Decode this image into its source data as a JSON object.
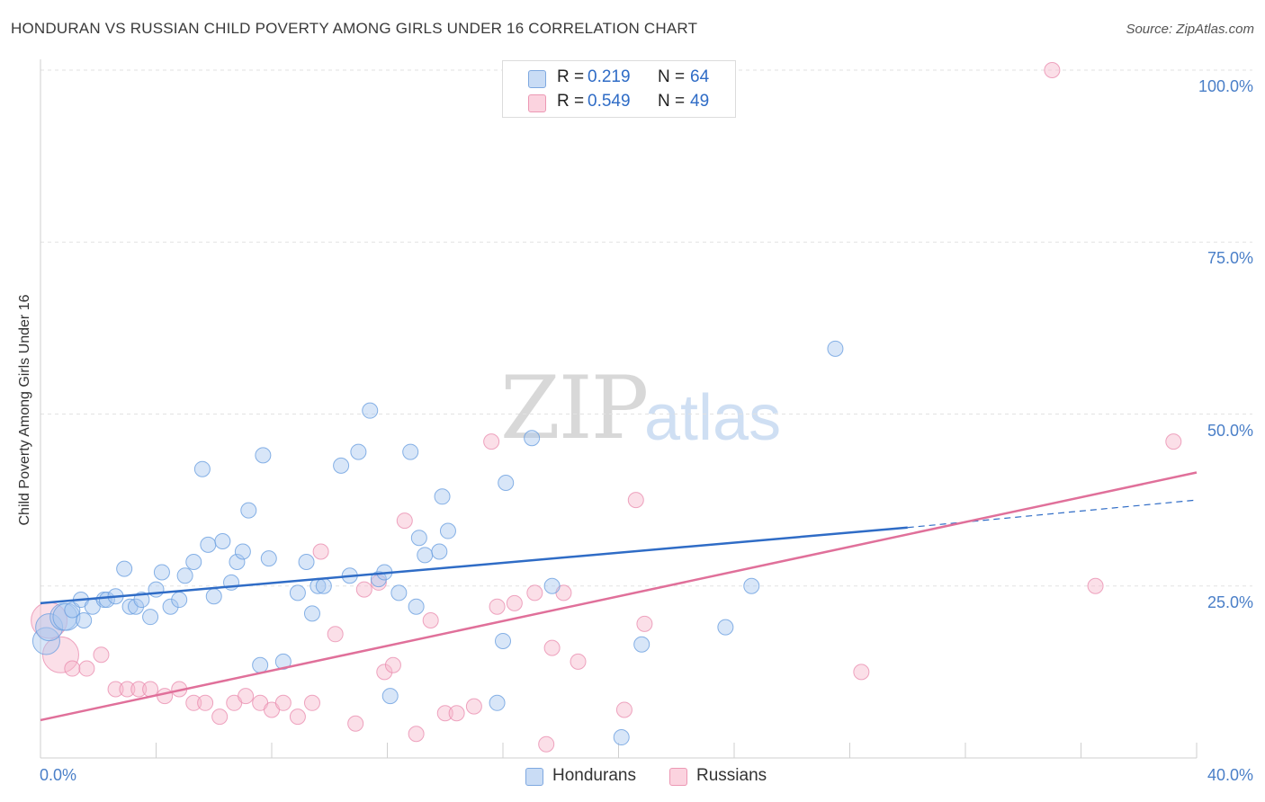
{
  "title": "HONDURAN VS RUSSIAN CHILD POVERTY AMONG GIRLS UNDER 16 CORRELATION CHART",
  "source": "Source: ZipAtlas.com",
  "watermark": {
    "zip": "ZIP",
    "atlas": "atlas"
  },
  "legend": {
    "rows": [
      {
        "r_label": "R =",
        "r_value": "0.219",
        "n_label": "N =",
        "n_value": "64",
        "color": "#a8c8f0"
      },
      {
        "r_label": "R =",
        "r_value": "0.549",
        "n_label": "N =",
        "n_value": "49",
        "color": "#f7b8cc"
      }
    ]
  },
  "bottom_legend": [
    "Hondurans",
    "Russians"
  ],
  "chart_data": {
    "type": "scatter",
    "title": "HONDURAN VS RUSSIAN CHILD POVERTY AMONG GIRLS UNDER 16 CORRELATION CHART",
    "xlabel": "",
    "ylabel": "Child Poverty Among Girls Under 16",
    "xlim": [
      0,
      40
    ],
    "ylim": [
      0,
      100
    ],
    "x_tick_labels": [
      "0.0%",
      "40.0%"
    ],
    "y_ticks": [
      25,
      50,
      75,
      100
    ],
    "y_tick_labels": [
      "25.0%",
      "50.0%",
      "75.0%",
      "100.0%"
    ],
    "grid": true,
    "legend_position": "top-center",
    "series": [
      {
        "name": "Hondurans",
        "color": "#6a9fe0",
        "fill": "#a8c8f0",
        "trend": {
          "x": [
            0,
            30
          ],
          "y": [
            22.5,
            33.5
          ],
          "dashed_to": [
            40,
            37.5
          ],
          "color": "#2f6cc6"
        },
        "points": [
          [
            0.2,
            17.0
          ],
          [
            0.3,
            19.0
          ],
          [
            0.8,
            20.5
          ],
          [
            0.9,
            20.5
          ],
          [
            1.1,
            21.5
          ],
          [
            1.4,
            23.0
          ],
          [
            1.5,
            20.0
          ],
          [
            1.8,
            22.0
          ],
          [
            2.2,
            23.0
          ],
          [
            2.3,
            23.0
          ],
          [
            2.6,
            23.5
          ],
          [
            2.9,
            27.5
          ],
          [
            3.1,
            22.0
          ],
          [
            3.3,
            22.0
          ],
          [
            3.5,
            23.0
          ],
          [
            3.8,
            20.5
          ],
          [
            4.0,
            24.5
          ],
          [
            4.2,
            27.0
          ],
          [
            4.5,
            22.0
          ],
          [
            4.8,
            23.0
          ],
          [
            5.0,
            26.5
          ],
          [
            5.3,
            28.5
          ],
          [
            5.6,
            42.0
          ],
          [
            5.8,
            31.0
          ],
          [
            6.0,
            23.5
          ],
          [
            6.3,
            31.5
          ],
          [
            6.6,
            25.5
          ],
          [
            6.8,
            28.5
          ],
          [
            7.0,
            30.0
          ],
          [
            7.2,
            36.0
          ],
          [
            7.6,
            13.5
          ],
          [
            7.7,
            44.0
          ],
          [
            7.9,
            29.0
          ],
          [
            8.4,
            14.0
          ],
          [
            8.9,
            24.0
          ],
          [
            9.2,
            28.5
          ],
          [
            9.4,
            21.0
          ],
          [
            9.6,
            25.0
          ],
          [
            9.8,
            25.0
          ],
          [
            10.4,
            42.5
          ],
          [
            10.7,
            26.5
          ],
          [
            11.0,
            44.5
          ],
          [
            11.4,
            50.5
          ],
          [
            11.7,
            26.0
          ],
          [
            11.9,
            27.0
          ],
          [
            12.1,
            9.0
          ],
          [
            12.4,
            24.0
          ],
          [
            12.8,
            44.5
          ],
          [
            13.0,
            22.0
          ],
          [
            13.1,
            32.0
          ],
          [
            13.3,
            29.5
          ],
          [
            13.8,
            30.0
          ],
          [
            13.9,
            38.0
          ],
          [
            14.1,
            33.0
          ],
          [
            15.8,
            8.0
          ],
          [
            16.0,
            17.0
          ],
          [
            16.1,
            40.0
          ],
          [
            17.0,
            46.5
          ],
          [
            17.7,
            25.0
          ],
          [
            20.1,
            3.0
          ],
          [
            20.8,
            16.5
          ],
          [
            23.7,
            19.0
          ],
          [
            24.6,
            25.0
          ],
          [
            27.5,
            59.5
          ]
        ]
      },
      {
        "name": "Russians",
        "color": "#ea8fb0",
        "fill": "#f7b8cc",
        "trend": {
          "x": [
            0,
            40
          ],
          "y": [
            5.5,
            41.5
          ],
          "color": "#e0709a"
        },
        "points": [
          [
            0.3,
            20.0
          ],
          [
            0.7,
            15.0
          ],
          [
            1.1,
            13.0
          ],
          [
            1.6,
            13.0
          ],
          [
            2.1,
            15.0
          ],
          [
            2.6,
            10.0
          ],
          [
            3.0,
            10.0
          ],
          [
            3.4,
            10.0
          ],
          [
            3.8,
            10.0
          ],
          [
            4.3,
            9.0
          ],
          [
            4.8,
            10.0
          ],
          [
            5.3,
            8.0
          ],
          [
            5.7,
            8.0
          ],
          [
            6.2,
            6.0
          ],
          [
            6.7,
            8.0
          ],
          [
            7.1,
            9.0
          ],
          [
            7.6,
            8.0
          ],
          [
            8.0,
            7.0
          ],
          [
            8.4,
            8.0
          ],
          [
            8.9,
            6.0
          ],
          [
            9.4,
            8.0
          ],
          [
            9.7,
            30.0
          ],
          [
            10.2,
            18.0
          ],
          [
            10.9,
            5.0
          ],
          [
            11.2,
            24.5
          ],
          [
            11.7,
            25.5
          ],
          [
            11.9,
            12.5
          ],
          [
            12.2,
            13.5
          ],
          [
            12.6,
            34.5
          ],
          [
            13.0,
            3.5
          ],
          [
            13.5,
            20.0
          ],
          [
            14.0,
            6.5
          ],
          [
            14.4,
            6.5
          ],
          [
            15.0,
            7.5
          ],
          [
            15.6,
            46.0
          ],
          [
            15.8,
            22.0
          ],
          [
            16.4,
            22.5
          ],
          [
            17.1,
            24.0
          ],
          [
            17.5,
            2.0
          ],
          [
            17.7,
            16.0
          ],
          [
            18.1,
            24.0
          ],
          [
            18.6,
            14.0
          ],
          [
            20.2,
            7.0
          ],
          [
            20.6,
            37.5
          ],
          [
            20.9,
            19.5
          ],
          [
            28.4,
            12.5
          ],
          [
            35.0,
            100.0
          ],
          [
            36.5,
            25.0
          ],
          [
            39.2,
            46.0
          ]
        ]
      }
    ]
  }
}
